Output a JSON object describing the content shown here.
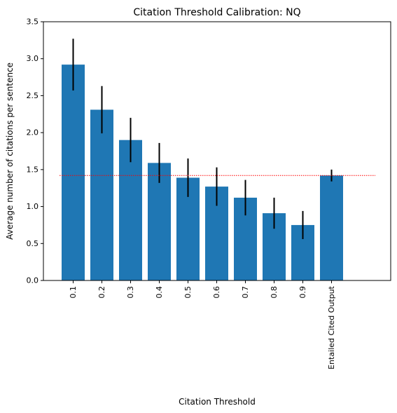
{
  "chart_data": {
    "type": "bar",
    "title": "Citation Threshold Calibration: NQ",
    "xlabel": "Citation Threshold",
    "ylabel": "Average number of citations per sentence",
    "categories": [
      "0.1",
      "0.2",
      "0.3",
      "0.4",
      "0.5",
      "0.6",
      "0.7",
      "0.8",
      "0.9",
      "Entailed Cited Output"
    ],
    "values": [
      2.92,
      2.31,
      1.9,
      1.59,
      1.39,
      1.27,
      1.12,
      0.91,
      0.75,
      1.42
    ],
    "errors": [
      0.35,
      0.32,
      0.3,
      0.27,
      0.26,
      0.26,
      0.24,
      0.21,
      0.19,
      0.08
    ],
    "reference_line": {
      "value": 1.42,
      "style": "dotted",
      "color": "#ff0000"
    },
    "ylim": [
      0,
      3.5
    ],
    "yticks": [
      "0.0",
      "0.5",
      "1.0",
      "1.5",
      "2.0",
      "2.5",
      "3.0",
      "3.5"
    ],
    "grid": false,
    "legend": "none",
    "colors": {
      "bar": "#1f77b4",
      "error": "#000000"
    }
  }
}
